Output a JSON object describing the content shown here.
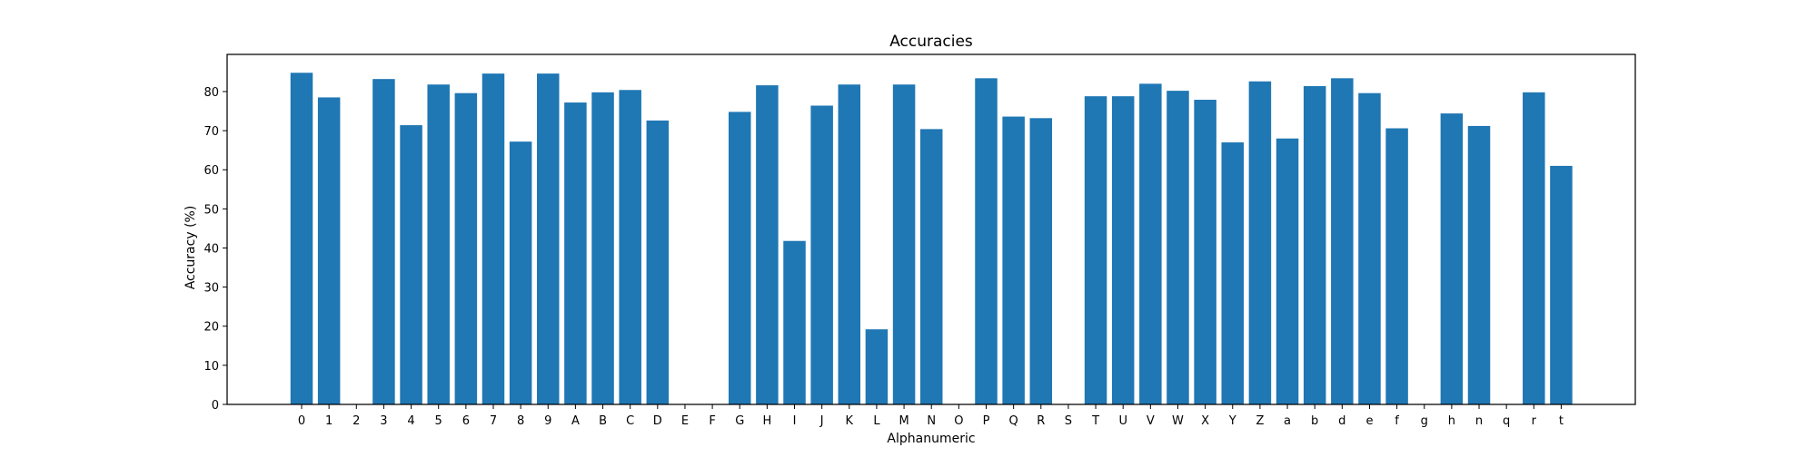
{
  "chart_data": {
    "type": "bar",
    "title": "Accuracies",
    "xlabel": "Alphanumeric",
    "ylabel": "Accuracy (%)",
    "ylim": [
      0,
      89.5
    ],
    "yticks": [
      0,
      10,
      20,
      30,
      40,
      50,
      60,
      70,
      80
    ],
    "grid": false,
    "bar_color": "#1f77b4",
    "categories": [
      "0",
      "1",
      "2",
      "3",
      "4",
      "5",
      "6",
      "7",
      "8",
      "9",
      "A",
      "B",
      "C",
      "D",
      "E",
      "F",
      "G",
      "H",
      "I",
      "J",
      "K",
      "L",
      "M",
      "N",
      "O",
      "P",
      "Q",
      "R",
      "S",
      "T",
      "U",
      "V",
      "W",
      "X",
      "Y",
      "Z",
      "a",
      "b",
      "d",
      "e",
      "f",
      "g",
      "h",
      "n",
      "q",
      "r",
      "t"
    ],
    "values": [
      84.8,
      78.5,
      0,
      83.2,
      71.4,
      81.8,
      79.6,
      84.6,
      67.2,
      84.6,
      77.2,
      79.8,
      80.4,
      72.6,
      0,
      0,
      74.8,
      81.6,
      41.8,
      76.4,
      81.8,
      19.2,
      81.8,
      70.4,
      0,
      83.4,
      73.6,
      73.2,
      0,
      78.8,
      78.8,
      82.0,
      80.2,
      77.9,
      67.0,
      82.6,
      68.0,
      81.4,
      83.4,
      79.6,
      70.6,
      0,
      74.4,
      71.2,
      0,
      79.8,
      61.0
    ]
  }
}
